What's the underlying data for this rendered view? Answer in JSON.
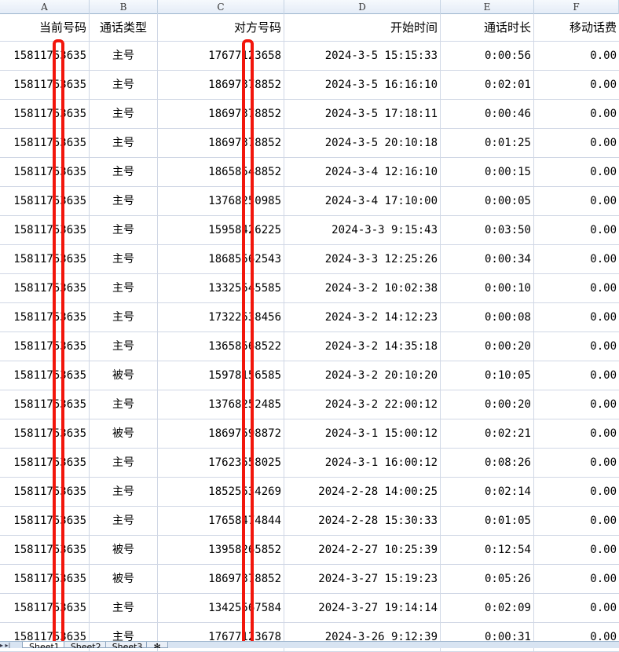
{
  "columns": [
    "A",
    "B",
    "C",
    "D",
    "E",
    "F"
  ],
  "headers": [
    "当前号码",
    "通话类型",
    "对方号码",
    "开始时间",
    "通话时长",
    "移动话费"
  ],
  "rows": [
    [
      "15811753635",
      "主号",
      "17677123658",
      "2024-3-5 15:15:33",
      "0:00:56",
      "0.00"
    ],
    [
      "15811753635",
      "主号",
      "18697378852",
      "2024-3-5 16:16:10",
      "0:02:01",
      "0.00"
    ],
    [
      "15811753635",
      "主号",
      "18697378852",
      "2024-3-5 17:18:11",
      "0:00:46",
      "0.00"
    ],
    [
      "15811753635",
      "主号",
      "18697378852",
      "2024-3-5 20:10:18",
      "0:01:25",
      "0.00"
    ],
    [
      "15811753635",
      "主号",
      "18658548852",
      "2024-3-4 12:16:10",
      "0:00:15",
      "0.00"
    ],
    [
      "15811753635",
      "主号",
      "13768250985",
      "2024-3-4 17:10:00",
      "0:00:05",
      "0.00"
    ],
    [
      "15811753635",
      "主号",
      "15958426225",
      "2024-3-3 9:15:43",
      "0:03:50",
      "0.00"
    ],
    [
      "15811753635",
      "主号",
      "18685562543",
      "2024-3-3 12:25:26",
      "0:00:34",
      "0.00"
    ],
    [
      "15811753635",
      "主号",
      "13325545585",
      "2024-3-2 10:02:38",
      "0:00:10",
      "0.00"
    ],
    [
      "15811753635",
      "主号",
      "17322538456",
      "2024-3-2 14:12:23",
      "0:00:08",
      "0.00"
    ],
    [
      "15811753635",
      "主号",
      "13658568522",
      "2024-3-2 14:35:18",
      "0:00:20",
      "0.00"
    ],
    [
      "15811753635",
      "被号",
      "15978156585",
      "2024-3-2 20:10:20",
      "0:10:05",
      "0.00"
    ],
    [
      "15811753635",
      "主号",
      "13768252485",
      "2024-3-2 22:00:12",
      "0:00:20",
      "0.00"
    ],
    [
      "15811753635",
      "被号",
      "18697598872",
      "2024-3-1 15:00:12",
      "0:02:21",
      "0.00"
    ],
    [
      "15811753635",
      "主号",
      "17623558025",
      "2024-3-1 16:00:12",
      "0:08:26",
      "0.00"
    ],
    [
      "15811753635",
      "主号",
      "18525534269",
      "2024-2-28 14:00:25",
      "0:02:14",
      "0.00"
    ],
    [
      "15811753635",
      "主号",
      "17658474844",
      "2024-2-28 15:30:33",
      "0:01:05",
      "0.00"
    ],
    [
      "15811753635",
      "被号",
      "13958265852",
      "2024-2-27 10:25:39",
      "0:12:54",
      "0.00"
    ],
    [
      "15811753635",
      "被号",
      "18697378852",
      "2024-3-27 15:19:23",
      "0:05:26",
      "0.00"
    ],
    [
      "15811753635",
      "主号",
      "13425567584",
      "2024-3-27 19:14:14",
      "0:02:09",
      "0.00"
    ],
    [
      "15811753635",
      "主号",
      "17677123678",
      "2024-3-26 9:12:39",
      "0:00:31",
      "0.00"
    ]
  ],
  "sheet_tabs": [
    "Sheet1",
    "Sheet2",
    "Sheet3"
  ],
  "active_tab": "Sheet1",
  "redaction_color": "#f2160c"
}
